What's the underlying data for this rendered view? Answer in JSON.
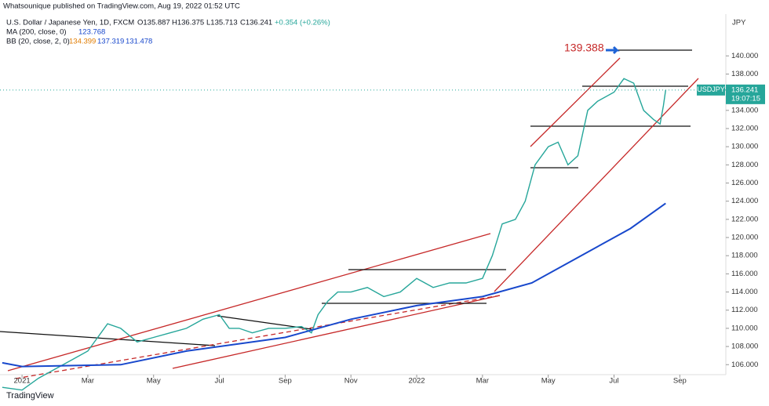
{
  "chart_data": {
    "type": "line",
    "published": "Whatsounique published on TradingView.com, Aug 19, 2022 01:52 UTC",
    "symbol": "U.S. Dollar / Japanese Yen, 1D, FXCM",
    "ohlc": [
      "O135.887",
      "H136.375",
      "L135.713",
      "C136.241",
      "+0.354 (+0.26%)"
    ],
    "ma_label": "MA (200, close, 0)",
    "ma_value": "123.768",
    "bb_label": "BB (20, close, 2, 0)",
    "bb_values": [
      "134.399",
      "137.319",
      "131.478"
    ],
    "currency": "JPY",
    "annotation": "139.388",
    "price_tag": {
      "symbol": "USDJPY",
      "price": "136.241",
      "countdown": "19:07:15"
    },
    "brand": "TradingView",
    "series": [
      {
        "name": "USDJPY",
        "color": "#26a69a",
        "x": [
          -0.6,
          0,
          0.5,
          1,
          1.5,
          2,
          2.3,
          2.6,
          3,
          3.5,
          4,
          4.5,
          5,
          5.5,
          6,
          6.3,
          6.6,
          7,
          7.5,
          8,
          8.5,
          8.8,
          9,
          9.3,
          9.6,
          10,
          10.5,
          11,
          11.5,
          12,
          12.5,
          13,
          13.5,
          14,
          14.3,
          14.6,
          15,
          15.3,
          15.6,
          16,
          16.3,
          16.6,
          16.9,
          17.2,
          17.5,
          18,
          18.3,
          18.6,
          18.9,
          19.2,
          19.4,
          19.5,
          19.57
        ],
        "values": [
          103.5,
          103.2,
          104.5,
          105.5,
          106.5,
          107.5,
          109,
          110.5,
          110,
          108.5,
          109,
          109.5,
          110,
          111,
          111.5,
          110,
          110,
          109.5,
          110,
          110,
          110.2,
          109.5,
          111.5,
          113,
          114,
          114,
          114.5,
          113.5,
          114,
          115.5,
          114.5,
          115,
          115,
          115.5,
          118,
          121.5,
          122,
          124,
          128,
          130,
          130.5,
          128,
          129,
          134,
          135,
          136,
          137.5,
          137,
          134,
          133,
          132.5,
          134.5,
          136.241
        ]
      },
      {
        "name": "MA (200)",
        "color": "#1848cc",
        "x": [
          -0.6,
          0,
          3,
          5,
          8,
          10,
          12,
          14,
          15.5,
          17,
          18.5,
          19.57
        ],
        "values": [
          106.2,
          105.8,
          106,
          107.5,
          109,
          111,
          112.5,
          113.5,
          115,
          118,
          121,
          123.768
        ]
      }
    ],
    "xlim": [
      -0.67,
      21.4
    ],
    "xticks": [
      {
        "value": 0,
        "label": "2021"
      },
      {
        "value": 2,
        "label": "Mar"
      },
      {
        "value": 4,
        "label": "May"
      },
      {
        "value": 6,
        "label": "Jul"
      },
      {
        "value": 8,
        "label": "Sep"
      },
      {
        "value": 10,
        "label": "Nov"
      },
      {
        "value": 12,
        "label": "2022"
      },
      {
        "value": 14,
        "label": "Mar"
      },
      {
        "value": 16,
        "label": "May"
      },
      {
        "value": 18,
        "label": "Jul"
      },
      {
        "value": 20,
        "label": "Sep"
      }
    ],
    "ylim": [
      104.9,
      144.6
    ],
    "yticks": [
      {
        "value": 106,
        "label": "106.000"
      },
      {
        "value": 108,
        "label": "108.000"
      },
      {
        "value": 110,
        "label": "110.000"
      },
      {
        "value": 112,
        "label": "112.000"
      },
      {
        "value": 114,
        "label": "114.000"
      },
      {
        "value": 116,
        "label": "116.000"
      },
      {
        "value": 118,
        "label": "118.000"
      },
      {
        "value": 120,
        "label": "120.000"
      },
      {
        "value": 122,
        "label": "122.000"
      },
      {
        "value": 124,
        "label": "124.000"
      },
      {
        "value": 126,
        "label": "126.000"
      },
      {
        "value": 128,
        "label": "128.000"
      },
      {
        "value": 130,
        "label": "130.000"
      },
      {
        "value": 132,
        "label": "132.000"
      },
      {
        "value": 134,
        "label": "134.000"
      },
      {
        "value": 136,
        "label": "136.000"
      },
      {
        "value": 138,
        "label": "138.000"
      },
      {
        "value": 140,
        "label": "140.000"
      }
    ]
  }
}
